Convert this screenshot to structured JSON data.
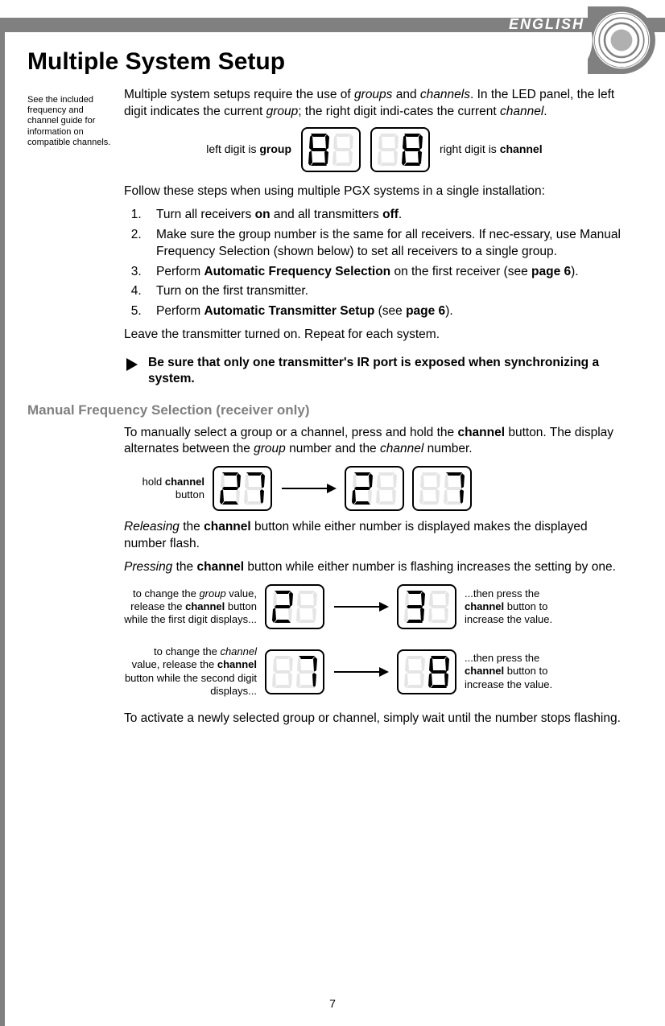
{
  "header": {
    "language": "ENGLISH"
  },
  "title": "Multiple System Setup",
  "sidenote": "See the included frequency and channel guide for information on compatible channels.",
  "intro": {
    "pre": "Multiple system setups require the use of ",
    "g": "groups",
    "mid1": " and ",
    "c": "channels",
    "mid2": ". In the LED panel, the left digit indicates the current ",
    "g2": "group",
    "mid3": "; the right digit indi-cates the current ",
    "c2": "channel",
    "end": "."
  },
  "digit_labels": {
    "left_pre": "left digit is ",
    "left_b": "group",
    "right_pre": "right digit is ",
    "right_b": "channel"
  },
  "digits_top": {
    "left_active": "8",
    "right_active": "8"
  },
  "follow": "Follow these steps when using multiple PGX systems in a single installation:",
  "steps": [
    {
      "pre": "Turn all receivers ",
      "b1": "on",
      "mid": " and all transmitters ",
      "b2": "off",
      "end": "."
    },
    {
      "text": "Make sure the group number is the same for all receivers. If nec-essary, use Manual Frequency Selection (shown below) to set all receivers to a single group."
    },
    {
      "pre": "Perform ",
      "b1": "Automatic Frequency Selection",
      "mid": " on the first receiver (see ",
      "b2": "page 6",
      "end": ")."
    },
    {
      "text": "Turn on the first transmitter."
    },
    {
      "pre": "Perform ",
      "b1": "Automatic Transmitter Setup",
      "mid": " (see ",
      "b2": "page 6",
      "end": ")."
    }
  ],
  "leave": "Leave the transmitter turned on. Repeat for each system.",
  "warning": "Be sure that only one transmitter's IR port is exposed when synchronizing a system.",
  "subhead": "Manual Frequency Selection (receiver only)",
  "manual_p1": {
    "pre": "To manually select a group or a channel, press and hold the ",
    "b": "channel",
    "mid": " button. The display alternates between the ",
    "i1": "group",
    "mid2": " number and the ",
    "i2": "channel",
    "end": " number."
  },
  "hold_label": {
    "pre": "hold ",
    "b": "channel",
    "post": " button"
  },
  "fig_hold": {
    "d1": "27",
    "d2": "2_",
    "d3": "_7"
  },
  "release_p": {
    "i": "Releasing",
    "pre": " the ",
    "b": "channel",
    "post": " button while either number is displayed makes the displayed number flash."
  },
  "press_p": {
    "i": "Pressing",
    "pre": " the ",
    "b": "channel",
    "post": " button while either number is flashing increases the setting by one."
  },
  "fig_group": {
    "cap_left": {
      "l1": "to change the ",
      "i": "group",
      "l2": " value, release the ",
      "b": "channel",
      "l3": " button while the first digit displays..."
    },
    "d1": "2_",
    "d2": "3_",
    "cap_right": {
      "l1": "...then press the ",
      "b": "channel",
      "l2": " button to increase the value."
    }
  },
  "fig_channel": {
    "cap_left": {
      "l1": "to change the ",
      "i": "channel",
      "l2": " value, release the ",
      "b": "channel",
      "l3": " button while the second digit displays..."
    },
    "d1": "_7",
    "d2": "_8",
    "cap_right": {
      "l1": "...then press the ",
      "b": "channel",
      "l2": " button to increase the value."
    }
  },
  "activate": "To activate a newly selected group or channel, simply wait until the number stops flashing.",
  "pagenum": "7",
  "colors": {
    "ghost": "#e5e5e5",
    "active": "#000000"
  }
}
